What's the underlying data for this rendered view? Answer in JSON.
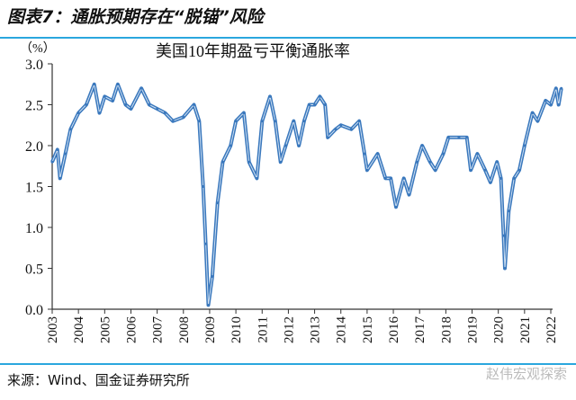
{
  "header": {
    "title": "图表7：通胀预期存在“脱锚”风险"
  },
  "footer": {
    "source": "来源：Wind、国金证券研究所",
    "watermark": "赵伟宏观探索"
  },
  "colors": {
    "series": "#3a78bd",
    "rule": "#2aa7de"
  },
  "chart_data": {
    "type": "line",
    "title": "美国10年期盈亏平衡通胀率",
    "ylabel": "（%）",
    "xlabel": "",
    "ylim": [
      0,
      3.0
    ],
    "xlim": [
      2003,
      2022
    ],
    "yticks": [
      "0.0",
      "0.5",
      "1.0",
      "1.5",
      "2.0",
      "2.5",
      "3.0"
    ],
    "xticks": [
      "2003",
      "2004",
      "2005",
      "2006",
      "2007",
      "2008",
      "2009",
      "2010",
      "2011",
      "2012",
      "2013",
      "2014",
      "2015",
      "2016",
      "2017",
      "2018",
      "2019",
      "2020",
      "2021",
      "2022"
    ],
    "grid": false,
    "series": [
      {
        "x": [
          2003.0,
          2003.2,
          2003.3,
          2003.5,
          2003.7,
          2004.0,
          2004.3,
          2004.6,
          2004.8,
          2005.0,
          2005.3,
          2005.5,
          2005.8,
          2006.0,
          2006.4,
          2006.7,
          2007.0,
          2007.3,
          2007.6,
          2008.0,
          2008.4,
          2008.6,
          2008.75,
          2008.85,
          2008.95,
          2009.1,
          2009.3,
          2009.5,
          2009.8,
          2010.0,
          2010.3,
          2010.5,
          2010.8,
          2011.0,
          2011.3,
          2011.5,
          2011.7,
          2011.9,
          2012.2,
          2012.4,
          2012.6,
          2012.8,
          2013.0,
          2013.2,
          2013.4,
          2013.5,
          2013.8,
          2014.0,
          2014.4,
          2014.7,
          2014.9,
          2015.0,
          2015.4,
          2015.7,
          2015.9,
          2016.1,
          2016.4,
          2016.6,
          2016.9,
          2017.1,
          2017.4,
          2017.6,
          2017.9,
          2018.1,
          2018.5,
          2018.8,
          2018.95,
          2019.2,
          2019.5,
          2019.7,
          2019.95,
          2020.1,
          2020.2,
          2020.25,
          2020.4,
          2020.6,
          2020.8,
          2021.0,
          2021.3,
          2021.5,
          2021.8,
          2022.0,
          2022.2,
          2022.3,
          2022.4
        ],
        "values": [
          1.8,
          1.95,
          1.6,
          1.9,
          2.2,
          2.4,
          2.5,
          2.75,
          2.4,
          2.6,
          2.55,
          2.75,
          2.5,
          2.45,
          2.7,
          2.5,
          2.45,
          2.4,
          2.3,
          2.35,
          2.5,
          2.3,
          1.5,
          0.8,
          0.05,
          0.4,
          1.3,
          1.8,
          2.0,
          2.3,
          2.4,
          1.8,
          1.6,
          2.3,
          2.6,
          2.3,
          1.8,
          2.0,
          2.3,
          2.0,
          2.3,
          2.5,
          2.5,
          2.6,
          2.5,
          2.1,
          2.2,
          2.25,
          2.2,
          2.3,
          1.9,
          1.7,
          1.9,
          1.6,
          1.6,
          1.25,
          1.6,
          1.4,
          1.8,
          2.0,
          1.8,
          1.7,
          1.9,
          2.1,
          2.1,
          2.1,
          1.7,
          1.9,
          1.7,
          1.55,
          1.8,
          1.6,
          0.9,
          0.5,
          1.2,
          1.6,
          1.7,
          2.0,
          2.4,
          2.3,
          2.55,
          2.5,
          2.7,
          2.5,
          2.7
        ]
      }
    ]
  }
}
